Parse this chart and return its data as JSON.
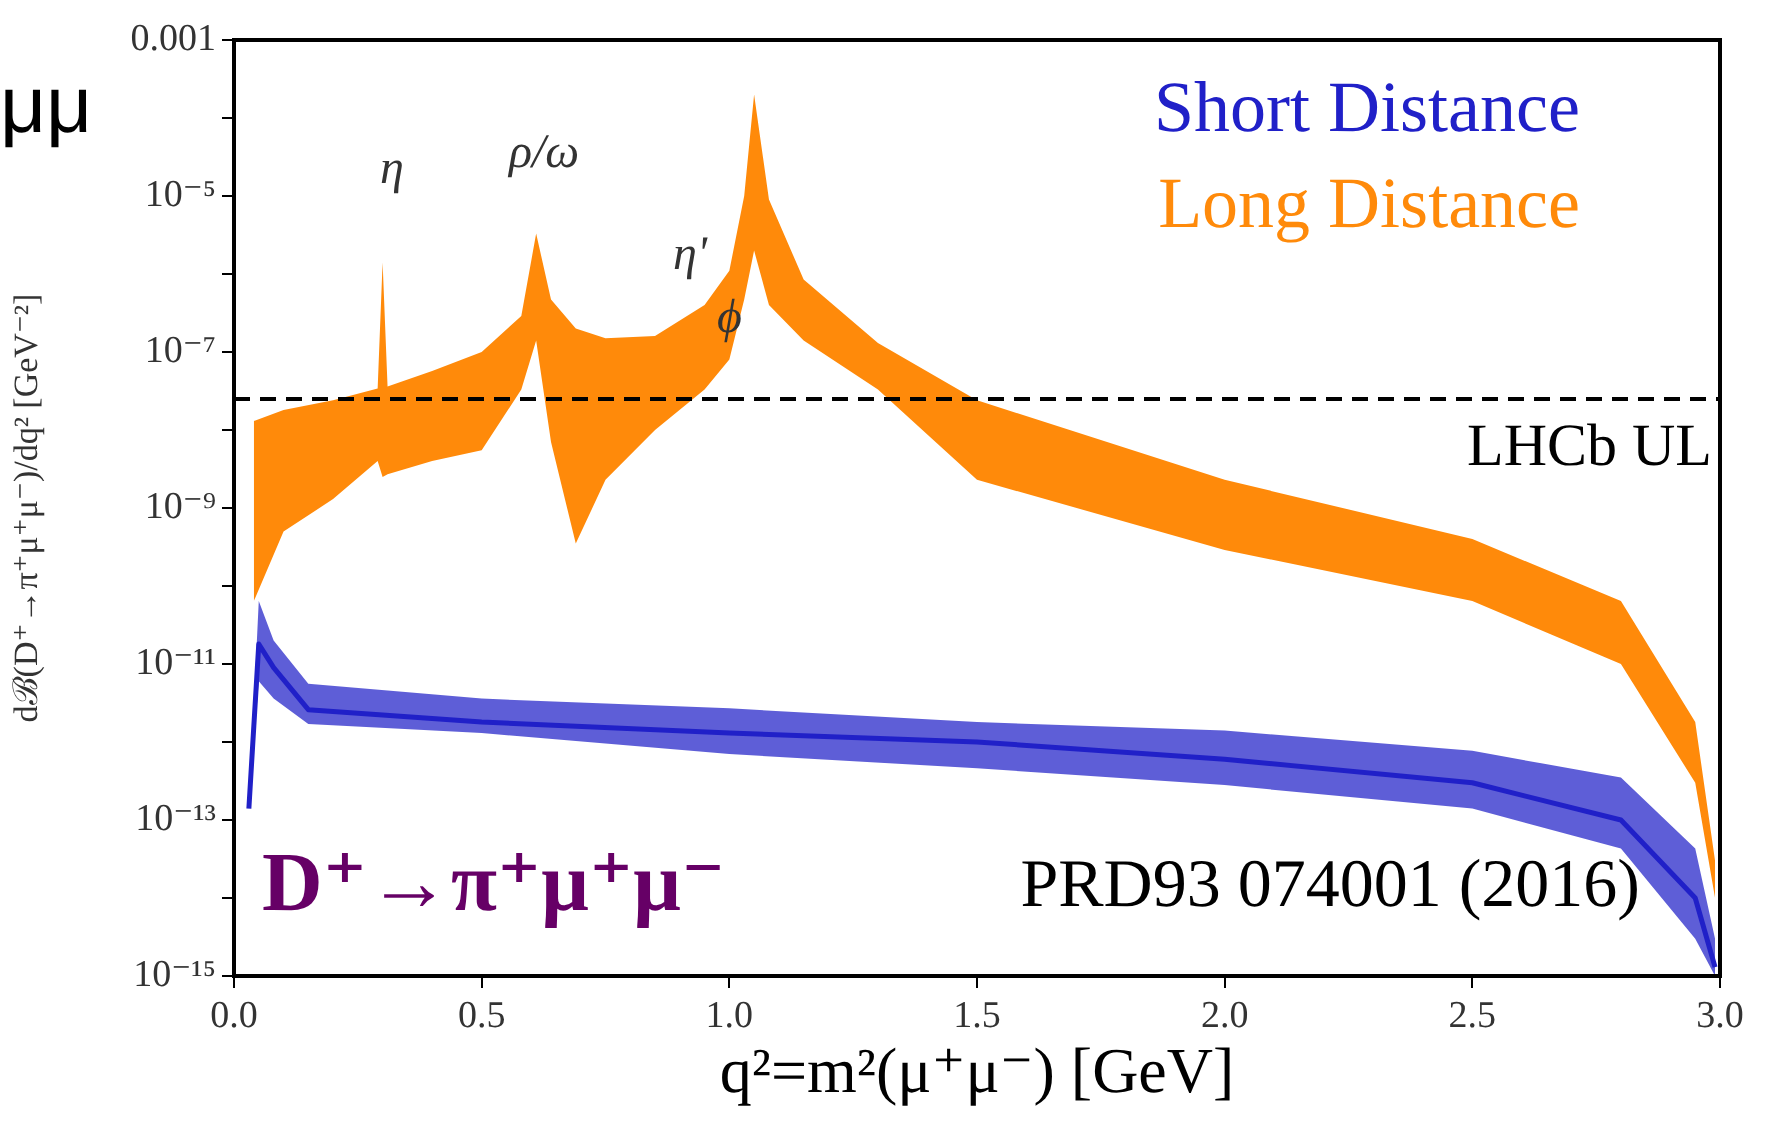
{
  "chart_data": {
    "type": "line",
    "xlabel": "q²=m²(μ⁺μ⁻) [GeV]",
    "ylabel": "dℬ(D⁺→π⁺μ⁺μ⁻)/dq² [GeV⁻²]",
    "log": "y",
    "grid": false,
    "legend": "top right",
    "marker": "none",
    "xlim": [
      0,
      3
    ],
    "xticks": [
      {
        "value": 0,
        "label": "0.0"
      },
      {
        "value": 0.5,
        "label": "0.5"
      },
      {
        "value": 1,
        "label": "1.0"
      },
      {
        "value": 1.5,
        "label": "1.5"
      },
      {
        "value": 2,
        "label": "2.0"
      },
      {
        "value": 2.5,
        "label": "2.5"
      },
      {
        "value": 3,
        "label": "3.0"
      }
    ],
    "ylim": [
      1e-15,
      0.001
    ],
    "yticks": [
      {
        "value": 1e-15,
        "label": "10⁻¹⁵"
      },
      {
        "value": 1e-14,
        "label": null
      },
      {
        "value": 1e-13,
        "label": "10⁻¹³"
      },
      {
        "value": 1e-12,
        "label": null
      },
      {
        "value": 1e-11,
        "label": "10⁻¹¹"
      },
      {
        "value": 1e-10,
        "label": null
      },
      {
        "value": 1e-09,
        "label": "10⁻⁹"
      },
      {
        "value": 1e-08,
        "label": null
      },
      {
        "value": 1e-07,
        "label": "10⁻⁷"
      },
      {
        "value": 1e-06,
        "label": null
      },
      {
        "value": 1e-05,
        "label": "10⁻⁵"
      },
      {
        "value": 0.0001,
        "label": null
      },
      {
        "value": 0.001,
        "label": "0.001"
      }
    ],
    "series": [
      {
        "name": "Short Distance",
        "type": "line",
        "color": "#2020c8",
        "x": [
          0.03,
          0.05,
          0.08,
          0.15,
          0.5,
          1.0,
          1.5,
          2.0,
          2.5,
          2.8,
          2.95,
          2.99
        ],
        "values": [
          1.4e-13,
          1.8e-11,
          9e-12,
          2.6e-12,
          1.8e-12,
          1.3e-12,
          1e-12,
          6e-13,
          3e-13,
          1e-13,
          1e-14,
          1.3e-15
        ],
        "lower": [
          1.4e-13,
          6e-12,
          3.6e-12,
          1.7e-12,
          1.3e-12,
          7e-13,
          4.6e-13,
          2.8e-13,
          1.4e-13,
          4.3e-14,
          3e-15,
          1e-15
        ],
        "upper": [
          1.4e-13,
          6.4e-11,
          2e-11,
          5.6e-12,
          3.6e-12,
          2.7e-12,
          1.8e-12,
          1.4e-12,
          7.7e-13,
          3.5e-13,
          4.3e-14,
          3e-15
        ]
      },
      {
        "name": "Long Distance",
        "type": "area",
        "color": "#ff8a0a",
        "x": [
          0.04,
          0.1,
          0.2,
          0.29,
          0.3,
          0.31,
          0.4,
          0.5,
          0.58,
          0.61,
          0.64,
          0.69,
          0.75,
          0.85,
          0.95,
          1.0,
          1.03,
          1.05,
          1.08,
          1.15,
          1.3,
          1.5,
          2.0,
          2.5,
          2.8,
          2.95,
          2.99
        ],
        "values": [
          null,
          null,
          null,
          null,
          null,
          null,
          null,
          null,
          null,
          null,
          null,
          null,
          null,
          null,
          null,
          null,
          null,
          null,
          null,
          null,
          null,
          null,
          null,
          null,
          null,
          null,
          null
        ],
        "lower": [
          6.4e-11,
          5e-10,
          1.3e-09,
          4e-09,
          2.5e-09,
          2.7e-09,
          4e-09,
          5.5e-09,
          3.3e-08,
          1.4e-07,
          7e-09,
          3.5e-10,
          2.3e-09,
          1e-08,
          3.3e-08,
          8e-08,
          4.7e-07,
          2e-06,
          4e-07,
          1.4e-07,
          3.3e-08,
          2.3e-09,
          2.9e-10,
          6.4e-11,
          1e-11,
          3e-13,
          1e-14
        ],
        "upper": [
          1.3e-08,
          1.8e-08,
          2.4e-08,
          3.4e-08,
          1.4e-06,
          3.6e-08,
          5.7e-08,
          1e-07,
          2.9e-07,
          3.3e-06,
          4.7e-07,
          2e-07,
          1.5e-07,
          1.6e-07,
          4e-07,
          1.1e-06,
          1e-05,
          0.0002,
          9e-06,
          8.5e-07,
          1.3e-07,
          2.4e-08,
          2.3e-09,
          4e-10,
          6.4e-11,
          1.8e-12,
          3e-14
        ]
      }
    ],
    "ref_lines": [
      {
        "axis": "y",
        "value": 2.5e-08,
        "label": "LHCb UL",
        "color": "#000000",
        "line_style": "dashed"
      }
    ],
    "annotations": [
      "η",
      "ρ/ω",
      "η'",
      {
        "text": "ϕ",
        "x": 1.0,
        "y": 2.6e-07
      },
      "μμ",
      "D⁺→π⁺μ⁺μ⁻",
      "PRD93 074001 (2016)"
    ]
  }
}
